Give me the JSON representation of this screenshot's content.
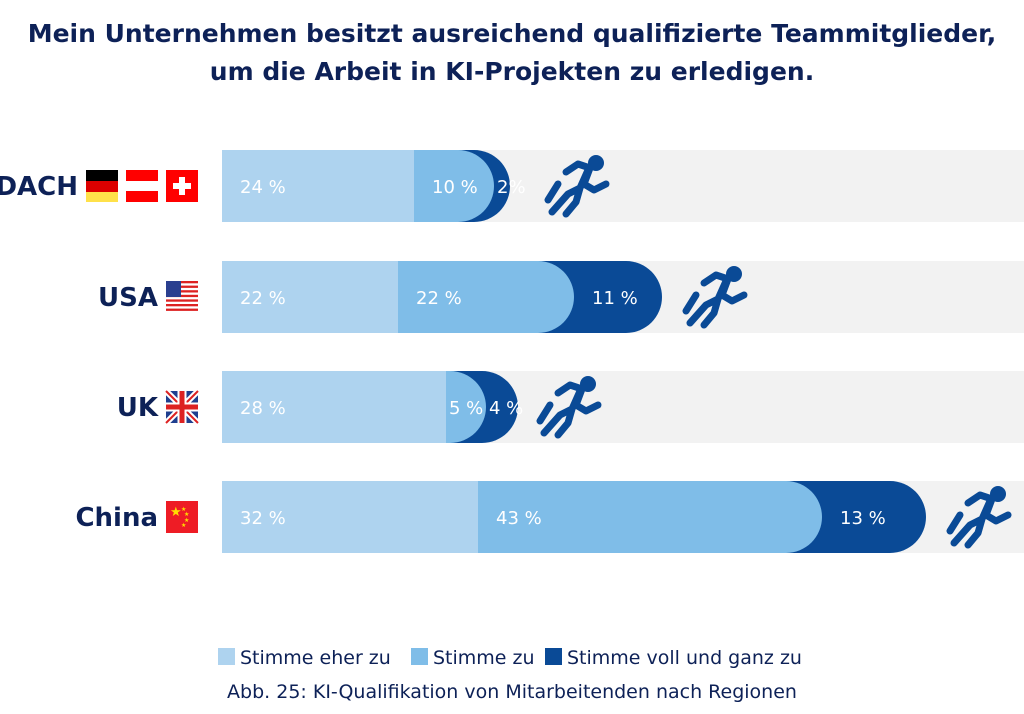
{
  "chart_data": {
    "type": "bar",
    "orientation": "horizontal-stacked",
    "title_lines": [
      "Mein Unternehmen besitzt ausreichend qualifizierte Teammitglieder,",
      "um die Arbeit in KI-Projekten zu erledigen."
    ],
    "caption": "Abb. 25: KI-Qualifikation von Mitarbeitenden nach Regionen",
    "categories": [
      "DACH",
      "USA",
      "UK",
      "China"
    ],
    "category_flags": [
      [
        "germany-flag",
        "austria-flag",
        "switzerland-flag"
      ],
      [
        "usa-flag"
      ],
      [
        "uk-flag"
      ],
      [
        "china-flag"
      ]
    ],
    "unit": "%",
    "xlim": [
      0,
      100
    ],
    "series": [
      {
        "name": "Stimme eher zu",
        "color": "#aed3ef",
        "values": [
          24,
          22,
          28,
          32
        ],
        "labels": [
          "24 %",
          "22 %",
          "28 %",
          "32 %"
        ]
      },
      {
        "name": "Stimme zu",
        "color": "#7fbde8",
        "values": [
          10,
          22,
          5,
          43
        ],
        "labels": [
          "10 %",
          "22 %",
          "5 %",
          "43 %"
        ]
      },
      {
        "name": "Stimme voll und ganz zu",
        "color": "#0a4a96",
        "values": [
          2,
          11,
          4,
          13
        ],
        "labels": [
          "2%",
          "11 %",
          "4 %",
          "13 %"
        ]
      }
    ],
    "track_color": "#f2f2f2",
    "legend_position": "bottom",
    "end_icon": "runner-icon",
    "grid": false
  },
  "colors": {
    "text": "#0d2157",
    "accent": "#0a4a96"
  }
}
